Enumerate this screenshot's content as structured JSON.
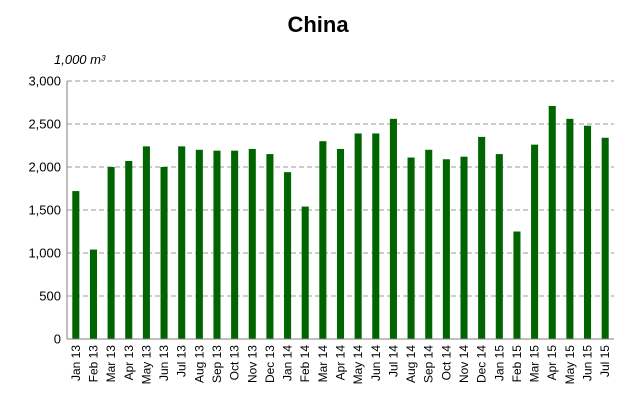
{
  "chart_data": {
    "type": "bar",
    "title": "China",
    "ylabel": "1,000 m³",
    "xlabel": "",
    "ylim": [
      0,
      3000
    ],
    "yticks": [
      "0",
      "500",
      "1,000",
      "1,500",
      "2,000",
      "2,500",
      "3,000"
    ],
    "ytick_values": [
      0,
      500,
      1000,
      1500,
      2000,
      2500,
      3000
    ],
    "grid": true,
    "legend": "none",
    "bar_color": "#006400",
    "categories": [
      "Jan 13",
      "Feb 13",
      "Mar 13",
      "Apr 13",
      "May 13",
      "Jun 13",
      "Jul 13",
      "Aug 13",
      "Sep 13",
      "Oct 13",
      "Nov 13",
      "Dec 13",
      "Jan 14",
      "Feb 14",
      "Mar 14",
      "Apr 14",
      "May 14",
      "Jun 14",
      "Jul 14",
      "Aug 14",
      "Sep 14",
      "Oct 14",
      "Nov 14",
      "Dec 14",
      "Jan 15",
      "Feb 15",
      "Mar 15",
      "Apr 15",
      "May 15",
      "Jun 15",
      "Jul 15"
    ],
    "values": [
      1720,
      1040,
      2000,
      2070,
      2240,
      2000,
      2240,
      2200,
      2190,
      2190,
      2210,
      2150,
      1940,
      1540,
      2300,
      2210,
      2390,
      2390,
      2560,
      2110,
      2200,
      2090,
      2120,
      2350,
      2150,
      1250,
      2260,
      2710,
      2560,
      2480,
      2340
    ]
  }
}
